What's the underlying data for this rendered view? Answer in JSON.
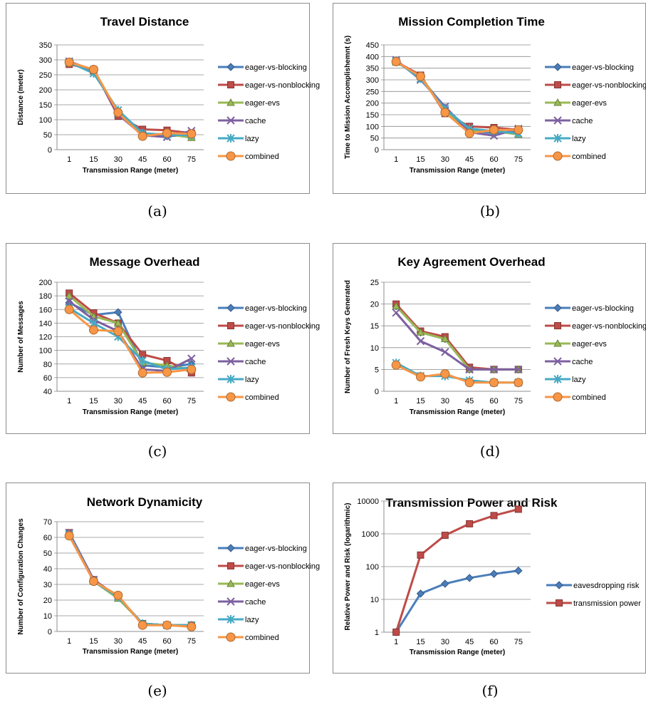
{
  "series_colors": {
    "eager-vs-blocking": "#4a7ebb",
    "eager-vs-nonblocking": "#be4b48",
    "eager-evs": "#98b954",
    "cache": "#7d60a0",
    "lazy": "#46aac4",
    "combined": "#f79646",
    "eavesdropping risk": "#4a7ebb",
    "transmission power": "#be4b48"
  },
  "captions": [
    "(a)",
    "(b)",
    "(c)",
    "(d)",
    "(e)",
    "(f)"
  ],
  "chart_data": [
    {
      "type": "line",
      "title": "Travel Distance",
      "xlabel": "Transmission Range (meter)",
      "ylabel": "Distance (meter)",
      "categories": [
        "1",
        "15",
        "30",
        "45",
        "60",
        "75"
      ],
      "ylim": [
        0,
        350
      ],
      "yticks": [
        0,
        50,
        100,
        150,
        200,
        250,
        300,
        350
      ],
      "grid": true,
      "legend": "right",
      "series": [
        {
          "name": "eager-vs-blocking",
          "marker": "diamond",
          "values": [
            290,
            258,
            128,
            55,
            45,
            50
          ]
        },
        {
          "name": "eager-vs-nonblocking",
          "marker": "square",
          "values": [
            285,
            268,
            112,
            68,
            65,
            55
          ]
        },
        {
          "name": "eager-evs",
          "marker": "triangle",
          "values": [
            290,
            262,
            122,
            52,
            52,
            40
          ]
        },
        {
          "name": "cache",
          "marker": "x",
          "values": [
            295,
            265,
            118,
            48,
            42,
            63
          ]
        },
        {
          "name": "lazy",
          "marker": "star",
          "values": [
            292,
            255,
            132,
            55,
            50,
            48
          ]
        },
        {
          "name": "combined",
          "marker": "circle",
          "values": [
            292,
            268,
            124,
            45,
            55,
            53
          ]
        }
      ]
    },
    {
      "type": "line",
      "title": "Mission Completion Time",
      "xlabel": "Transmission Range (meter)",
      "ylabel": "Time to Mission Accomplishemnt (s)",
      "categories": [
        "1",
        "15",
        "30",
        "45",
        "60",
        "75"
      ],
      "ylim": [
        0,
        450
      ],
      "yticks": [
        0,
        50,
        100,
        150,
        200,
        250,
        300,
        350,
        400,
        450
      ],
      "grid": true,
      "legend": "right",
      "series": [
        {
          "name": "eager-vs-blocking",
          "marker": "diamond",
          "values": [
            380,
            310,
            180,
            85,
            70,
            80
          ]
        },
        {
          "name": "eager-vs-nonblocking",
          "marker": "square",
          "values": [
            378,
            320,
            155,
            100,
            95,
            85
          ]
        },
        {
          "name": "eager-evs",
          "marker": "triangle",
          "values": [
            375,
            315,
            170,
            80,
            80,
            65
          ]
        },
        {
          "name": "cache",
          "marker": "x",
          "values": [
            385,
            300,
            185,
            75,
            60,
            90
          ]
        },
        {
          "name": "lazy",
          "marker": "star",
          "values": [
            380,
            305,
            175,
            90,
            80,
            70
          ]
        },
        {
          "name": "combined",
          "marker": "circle",
          "values": [
            378,
            315,
            160,
            70,
            85,
            85
          ]
        }
      ]
    },
    {
      "type": "line",
      "title": "Message Overhead",
      "xlabel": "Transmission Range (meter)",
      "ylabel": "Number of Messages",
      "categories": [
        "1",
        "15",
        "30",
        "45",
        "60",
        "75"
      ],
      "ylim": [
        40,
        200
      ],
      "yticks": [
        40,
        60,
        80,
        100,
        120,
        140,
        160,
        180,
        200
      ],
      "grid": true,
      "legend": "right",
      "series": [
        {
          "name": "eager-vs-blocking",
          "marker": "diamond",
          "values": [
            170,
            152,
            156,
            78,
            75,
            80
          ]
        },
        {
          "name": "eager-vs-nonblocking",
          "marker": "square",
          "values": [
            184,
            155,
            140,
            94,
            85,
            67
          ]
        },
        {
          "name": "eager-evs",
          "marker": "triangle",
          "values": [
            180,
            150,
            140,
            82,
            78,
            72
          ]
        },
        {
          "name": "cache",
          "marker": "x",
          "values": [
            172,
            145,
            128,
            72,
            70,
            88
          ]
        },
        {
          "name": "lazy",
          "marker": "star",
          "values": [
            162,
            140,
            120,
            85,
            72,
            75
          ]
        },
        {
          "name": "combined",
          "marker": "circle",
          "values": [
            160,
            130,
            128,
            67,
            68,
            72
          ]
        }
      ]
    },
    {
      "type": "line",
      "title": "Key Agreement Overhead",
      "xlabel": "Transmission Range (meter)",
      "ylabel": "Number of Fresh Keys Generated",
      "categories": [
        "1",
        "15",
        "30",
        "45",
        "60",
        "75"
      ],
      "ylim": [
        0,
        25
      ],
      "yticks": [
        0,
        5,
        10,
        15,
        20,
        25
      ],
      "grid": true,
      "legend": "right",
      "series": [
        {
          "name": "eager-vs-blocking",
          "marker": "diamond",
          "values": [
            19.5,
            13.5,
            12.0,
            5.0,
            5.0,
            5.0
          ]
        },
        {
          "name": "eager-vs-nonblocking",
          "marker": "square",
          "values": [
            20.0,
            13.8,
            12.5,
            5.5,
            5.0,
            5.0
          ]
        },
        {
          "name": "eager-evs",
          "marker": "triangle",
          "values": [
            19.5,
            13.5,
            12.0,
            5.0,
            5.0,
            5.0
          ]
        },
        {
          "name": "cache",
          "marker": "x",
          "values": [
            18.0,
            11.5,
            9.0,
            5.0,
            5.0,
            5.0
          ]
        },
        {
          "name": "lazy",
          "marker": "star",
          "values": [
            6.5,
            3.5,
            3.5,
            2.5,
            2.0,
            2.0
          ]
        },
        {
          "name": "combined",
          "marker": "circle",
          "values": [
            6.0,
            3.3,
            4.0,
            2.0,
            2.0,
            2.0
          ]
        }
      ]
    },
    {
      "type": "line",
      "title": "Network Dynamicity",
      "xlabel": "Transmission Range (meter)",
      "ylabel": "Number of Configuration Changes",
      "categories": [
        "1",
        "15",
        "30",
        "45",
        "60",
        "75"
      ],
      "ylim": [
        0,
        70
      ],
      "yticks": [
        0,
        10,
        20,
        30,
        40,
        50,
        60,
        70
      ],
      "grid": true,
      "legend": "right",
      "series": [
        {
          "name": "eager-vs-blocking",
          "marker": "diamond",
          "values": [
            62,
            33,
            22,
            5,
            4,
            4
          ]
        },
        {
          "name": "eager-vs-nonblocking",
          "marker": "square",
          "values": [
            63,
            33,
            22,
            5,
            4,
            4
          ]
        },
        {
          "name": "eager-evs",
          "marker": "triangle",
          "values": [
            62,
            32,
            21,
            5,
            4,
            4
          ]
        },
        {
          "name": "cache",
          "marker": "x",
          "values": [
            63,
            33,
            22,
            5,
            4,
            4
          ]
        },
        {
          "name": "lazy",
          "marker": "star",
          "values": [
            62,
            32,
            22,
            5,
            4,
            4
          ]
        },
        {
          "name": "combined",
          "marker": "circle",
          "values": [
            61,
            32,
            23,
            4,
            4,
            3
          ]
        }
      ]
    },
    {
      "type": "line",
      "title": "Transmission Power and Risk",
      "xlabel": "Transmission Range (meter)",
      "ylabel": "Relative Power and Risk (logarithmic)",
      "categories": [
        "1",
        "15",
        "30",
        "45",
        "60",
        "75"
      ],
      "yscale": "log",
      "ylim": [
        1,
        10000
      ],
      "yticks": [
        1,
        10,
        100,
        1000,
        10000
      ],
      "grid": true,
      "legend": "right",
      "series": [
        {
          "name": "eavesdropping risk",
          "marker": "diamond",
          "values": [
            1,
            15,
            30,
            45,
            60,
            75
          ]
        },
        {
          "name": "transmission power",
          "marker": "square",
          "values": [
            1,
            225,
            900,
            2025,
            3600,
            5625
          ]
        }
      ]
    }
  ]
}
